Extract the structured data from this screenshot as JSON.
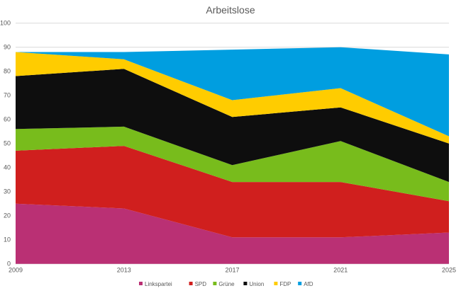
{
  "chart_data": {
    "type": "area",
    "stacked": true,
    "title": "Arbeitslose",
    "xlabel": "",
    "ylabel": "",
    "x": [
      "2009",
      "2013",
      "2017",
      "2021",
      "2025"
    ],
    "ylim": [
      0,
      100
    ],
    "yticks": [
      0,
      10,
      20,
      30,
      40,
      50,
      60,
      70,
      80,
      90,
      100
    ],
    "grid": true,
    "legend_position": "bottom",
    "series": [
      {
        "name": "Linkspartei",
        "color": "#BA3074",
        "values": [
          25,
          23,
          11,
          11,
          13
        ]
      },
      {
        "name": "SPD",
        "color": "#D01F1E",
        "values": [
          22,
          26,
          23,
          23,
          13
        ]
      },
      {
        "name": "Grüne",
        "color": "#78BC1C",
        "values": [
          9,
          8,
          7,
          17,
          8
        ]
      },
      {
        "name": "Union",
        "color": "#0E0E0E",
        "values": [
          22,
          24,
          20,
          14,
          16
        ]
      },
      {
        "name": "FDP",
        "color": "#FFCC00",
        "values": [
          10,
          4,
          7,
          8,
          3
        ]
      },
      {
        "name": "AfD",
        "color": "#009EE0",
        "values": [
          0,
          3,
          21,
          17,
          34
        ]
      }
    ]
  }
}
